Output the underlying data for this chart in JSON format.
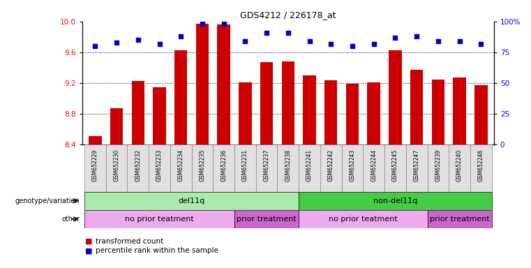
{
  "title": "GDS4212 / 226178_at",
  "samples": [
    "GSM652229",
    "GSM652230",
    "GSM652232",
    "GSM652233",
    "GSM652234",
    "GSM652235",
    "GSM652236",
    "GSM652231",
    "GSM652237",
    "GSM652238",
    "GSM652241",
    "GSM652242",
    "GSM652243",
    "GSM652244",
    "GSM652245",
    "GSM652247",
    "GSM652239",
    "GSM652240",
    "GSM652246"
  ],
  "bar_values": [
    8.51,
    8.87,
    9.23,
    9.15,
    9.63,
    9.97,
    9.96,
    9.21,
    9.47,
    9.48,
    9.3,
    9.24,
    9.19,
    9.21,
    9.63,
    9.37,
    9.25,
    9.27,
    9.17
  ],
  "percentile_values": [
    80,
    83,
    85,
    82,
    88,
    98,
    98,
    84,
    91,
    91,
    84,
    82,
    80,
    82,
    87,
    88,
    84,
    84,
    82
  ],
  "ymin": 8.4,
  "ymax": 10.0,
  "yticks": [
    8.4,
    8.8,
    9.2,
    9.6,
    10.0
  ],
  "right_yticks": [
    0,
    25,
    50,
    75,
    100
  ],
  "right_yticklabels": [
    "0",
    "25",
    "50",
    "75",
    "100%"
  ],
  "bar_color": "#cc0000",
  "dot_color": "#0000cc",
  "bar_bottom": 8.4,
  "genotype_groups": [
    {
      "label": "del11q",
      "start": 0,
      "end": 10,
      "color": "#aaeaaa"
    },
    {
      "label": "non-del11q",
      "start": 10,
      "end": 19,
      "color": "#44cc44"
    }
  ],
  "other_groups": [
    {
      "label": "no prior teatment",
      "start": 0,
      "end": 7,
      "color": "#eeaaee"
    },
    {
      "label": "prior treatment",
      "start": 7,
      "end": 10,
      "color": "#cc66cc"
    },
    {
      "label": "no prior teatment",
      "start": 10,
      "end": 16,
      "color": "#eeaaee"
    },
    {
      "label": "prior treatment",
      "start": 16,
      "end": 19,
      "color": "#cc66cc"
    }
  ],
  "legend_items": [
    {
      "label": "transformed count",
      "color": "#cc0000"
    },
    {
      "label": "percentile rank within the sample",
      "color": "#0000cc"
    }
  ],
  "grid_lines": [
    8.8,
    9.2,
    9.6
  ]
}
